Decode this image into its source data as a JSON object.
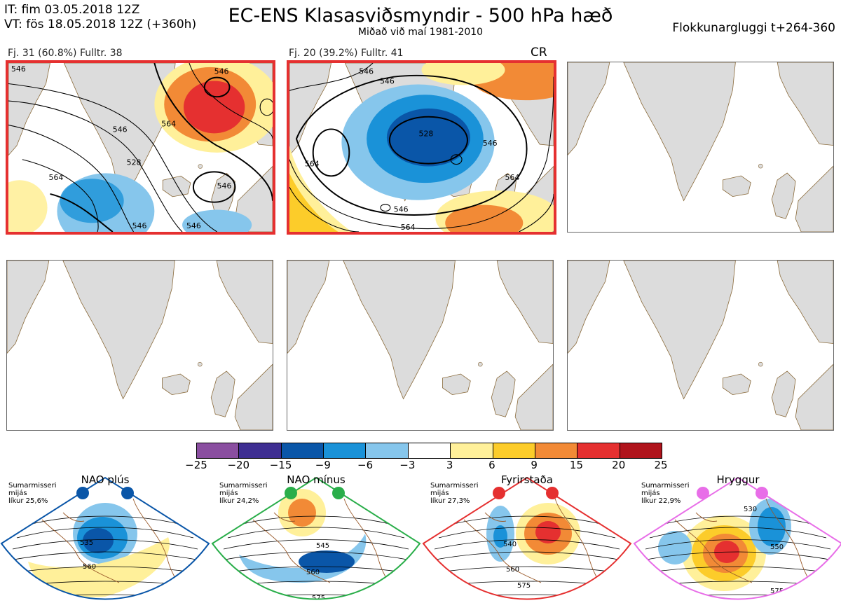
{
  "header": {
    "it_line": "IT: fim 03.05.2018 12Z",
    "vt_line": "VT: fös 18.05.2018 12Z  (+360h)",
    "title": "EC-ENS Klasasviðsmyndir - 500 hPa hæð",
    "subtitle": "Miðað við maí 1981-2010",
    "window": "Flokkunargluggi t+264-360"
  },
  "panels": [
    {
      "caption": "Fj. 31 (60.8%)   Fulltr. 38",
      "highlighted": true,
      "contour_labels": [
        "546",
        "546",
        "528",
        "564",
        "546",
        "546",
        "564",
        "546",
        "546"
      ]
    },
    {
      "caption": "Fj. 20 (39.2%)   Fulltr. 41",
      "highlighted": true,
      "tag": "CR",
      "contour_labels": [
        "546",
        "528",
        "546",
        "564",
        "546",
        "564",
        "546",
        "564"
      ]
    },
    {
      "highlighted": false
    },
    {
      "highlighted": false
    },
    {
      "highlighted": false
    },
    {
      "highlighted": false
    }
  ],
  "colorbar": {
    "ticks": [
      "−25",
      "−20",
      "−15",
      "−9",
      "−6",
      "−3",
      "3",
      "6",
      "9",
      "15",
      "20",
      "25"
    ],
    "colors": [
      "#8a4ea0",
      "#3e2e92",
      "#0a56a8",
      "#1a92d8",
      "#86c6ec",
      "#ffffff",
      "#fff09a",
      "#fccc2a",
      "#f28a36",
      "#e53030",
      "#b0141c"
    ]
  },
  "regimes": [
    {
      "name": "NAO plús",
      "line1": "Sumarmisseri",
      "line2": "mijás",
      "line3": "líkur 25,6%",
      "color": "#0a56a8",
      "labels": [
        "535",
        "560"
      ]
    },
    {
      "name": "NAO mínus",
      "line1": "Sumarmisseri",
      "line2": "mijás",
      "line3": "líkur 24,2%",
      "color": "#2aae4a",
      "labels": [
        "545",
        "560",
        "575"
      ]
    },
    {
      "name": "Fyrirstaða",
      "line1": "Sumarmisseri",
      "line2": "mijás",
      "line3": "líkur 27,3%",
      "color": "#e53030",
      "labels": [
        "540",
        "560",
        "575"
      ]
    },
    {
      "name": "Hryggur",
      "line1": "Sumarmisseri",
      "line2": "mijás",
      "line3": "líkur 22,9%",
      "color": "#e86ee8",
      "labels": [
        "530",
        "550",
        "575"
      ]
    }
  ]
}
